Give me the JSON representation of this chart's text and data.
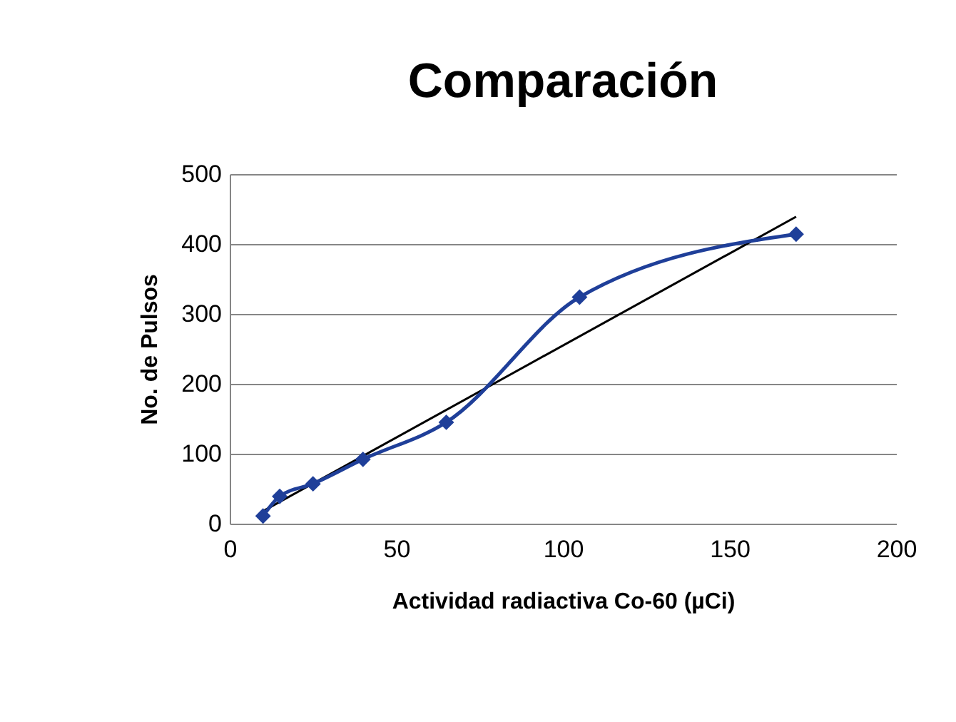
{
  "chart_data": {
    "type": "line",
    "title": "Comparación",
    "xlabel": "Actividad radiactiva Co-60 (µCi)",
    "ylabel": "No. de Pulsos",
    "xlim": [
      0,
      200
    ],
    "xticks": [
      0,
      50,
      100,
      150,
      200
    ],
    "ylim": [
      0,
      500
    ],
    "yticks": [
      0,
      100,
      200,
      300,
      400,
      500
    ],
    "grid": "y",
    "series": [
      {
        "type": "line",
        "color": "#000000",
        "marker": "none",
        "x": [
          10,
          170
        ],
        "values": [
          18,
          439
        ]
      },
      {
        "color": "#1f3f99",
        "marker": "diamond",
        "x": [
          10,
          15,
          25,
          40,
          65,
          105,
          170
        ],
        "values": [
          11,
          39,
          57,
          92,
          145,
          324,
          414
        ]
      }
    ]
  }
}
